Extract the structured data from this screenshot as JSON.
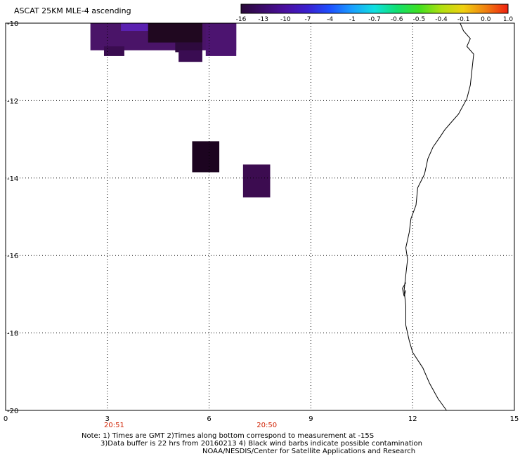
{
  "title": "ASCAT 25KM MLE-4 ascending",
  "colorbar": {
    "labels": [
      "-16",
      "-13",
      "-10",
      "-7",
      "-4",
      "-1",
      "-0.7",
      "-0.6",
      "-0.5",
      "-0.4",
      "-0.1",
      "0.0",
      "1.0"
    ],
    "colors": [
      "#2a0a3a",
      "#3c0b6b",
      "#4a0fa0",
      "#3a20d0",
      "#1e50ff",
      "#1aa0ff",
      "#10e0e0",
      "#10e070",
      "#40e020",
      "#b0e010",
      "#f0d010",
      "#f08010",
      "#f02010"
    ]
  },
  "map": {
    "lon_range": [
      0,
      15
    ],
    "lat_range": [
      -10,
      -20
    ],
    "x_ticks": [
      "0",
      "3",
      "6",
      "9",
      "12",
      "15"
    ],
    "y_ticks": [
      "-10",
      "-12",
      "-14",
      "-16",
      "-18",
      "-20"
    ],
    "time_labels": [
      {
        "text": "20:51",
        "lon": 3.2
      },
      {
        "text": "20:50",
        "lon": 7.7
      }
    ],
    "time_color": "#d02000",
    "cells": [
      {
        "lon0": 2.5,
        "lat0": -10.0,
        "lon1": 6.8,
        "lat1": -10.7,
        "color": "#4a1468"
      },
      {
        "lon0": 2.9,
        "lat0": -10.6,
        "lon1": 3.5,
        "lat1": -10.85,
        "color": "#3a0c50"
      },
      {
        "lon0": 3.4,
        "lat0": -10.0,
        "lon1": 4.4,
        "lat1": -10.2,
        "color": "#5a20b0"
      },
      {
        "lon0": 4.2,
        "lat0": -10.0,
        "lon1": 5.8,
        "lat1": -10.5,
        "color": "#200820"
      },
      {
        "lon0": 5.0,
        "lat0": -10.5,
        "lon1": 5.8,
        "lat1": -10.75,
        "color": "#2e0a3e"
      },
      {
        "lon0": 5.1,
        "lat0": -10.7,
        "lon1": 5.8,
        "lat1": -11.0,
        "color": "#3a0c52"
      },
      {
        "lon0": 5.9,
        "lat0": -10.0,
        "lon1": 6.8,
        "lat1": -10.85,
        "color": "#4c1470"
      },
      {
        "lon0": 5.5,
        "lat0": -13.05,
        "lon1": 6.3,
        "lat1": -13.85,
        "color": "#1c0420"
      },
      {
        "lon0": 7.0,
        "lat0": -13.65,
        "lon1": 7.8,
        "lat1": -14.5,
        "color": "#3c0c50"
      }
    ],
    "coastline": [
      [
        13.4,
        -10.0
      ],
      [
        13.5,
        -10.2
      ],
      [
        13.7,
        -10.4
      ],
      [
        13.6,
        -10.6
      ],
      [
        13.8,
        -10.8
      ],
      [
        13.75,
        -11.2
      ],
      [
        13.7,
        -11.6
      ],
      [
        13.6,
        -11.95
      ],
      [
        13.35,
        -12.35
      ],
      [
        13.1,
        -12.6
      ],
      [
        12.95,
        -12.75
      ],
      [
        12.8,
        -12.95
      ],
      [
        12.6,
        -13.2
      ],
      [
        12.45,
        -13.5
      ],
      [
        12.35,
        -13.9
      ],
      [
        12.15,
        -14.25
      ],
      [
        12.1,
        -14.7
      ],
      [
        11.95,
        -15.05
      ],
      [
        11.9,
        -15.4
      ],
      [
        11.8,
        -15.8
      ],
      [
        11.85,
        -16.1
      ],
      [
        11.8,
        -16.5
      ],
      [
        11.75,
        -16.9
      ],
      [
        11.8,
        -17.3
      ],
      [
        11.8,
        -17.8
      ],
      [
        11.9,
        -18.2
      ],
      [
        12.0,
        -18.5
      ],
      [
        12.3,
        -18.9
      ],
      [
        12.5,
        -19.3
      ],
      [
        12.75,
        -19.7
      ],
      [
        13.0,
        -20.0
      ]
    ]
  },
  "notes": [
    "Note: 1) Times are GMT 2)Times along bottom correspond to measurement at -15S",
    "3)Data buffer is 22 hrs from 20160213 4) Black wind barbs indicate possible contamination",
    "NOAA/NESDIS/Center for Satellite Applications and Research"
  ]
}
